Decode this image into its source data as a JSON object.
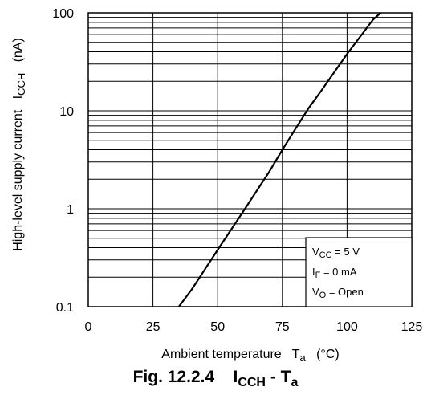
{
  "chart_data": {
    "type": "line",
    "title": "",
    "xlabel": "Ambient temperature   T",
    "xlabel_sub": "a",
    "xlabel_unit": "(°C)",
    "ylabel": "High-level supply current   I",
    "ylabel_sub": "CCH",
    "ylabel_unit": "(nA)",
    "xlim": [
      0,
      125
    ],
    "ylim": [
      0.1,
      100
    ],
    "yscale": "log",
    "grid": true,
    "x_ticks": [
      "0",
      "25",
      "50",
      "75",
      "100",
      "125"
    ],
    "y_ticks": [
      "0.1",
      "1",
      "10",
      "100"
    ],
    "series": [
      {
        "x": [
          35,
          40,
          50,
          60,
          70,
          75,
          80,
          85,
          90,
          100,
          110,
          113
        ],
        "y": [
          0.1,
          0.15,
          0.38,
          0.95,
          2.4,
          4.0,
          6.5,
          10.5,
          16,
          38,
          85,
          100
        ]
      }
    ],
    "conditions": [
      {
        "main": "V",
        "sub": "CC",
        "rest": " = 5 V"
      },
      {
        "main": "I",
        "sub": "F",
        "rest": " = 0 mA"
      },
      {
        "main": "V",
        "sub": "O",
        "rest": " = Open"
      }
    ],
    "caption": {
      "prefix": "Fig. 12.2.4    I",
      "sub1": "CCH",
      "mid": " - T",
      "sub2": "a"
    }
  }
}
